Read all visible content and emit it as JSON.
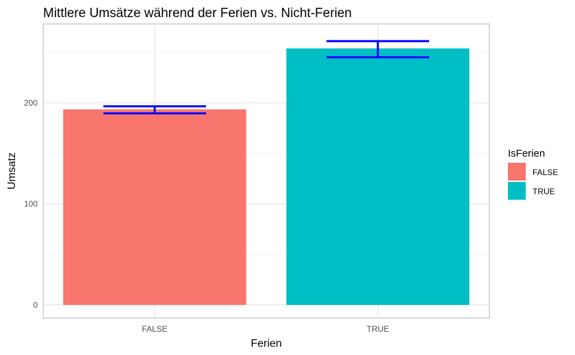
{
  "chart_data": {
    "type": "bar",
    "title": "Mittlere Umsätze während der Ferien vs. Nicht-Ferien",
    "xlabel": "Ferien",
    "ylabel": "Umsatz",
    "categories": [
      "FALSE",
      "TRUE"
    ],
    "values": [
      193.5,
      253.8
    ],
    "error_bars": [
      {
        "lower": 189.5,
        "upper": 196.5
      },
      {
        "lower": 245.0,
        "upper": 261.0
      }
    ],
    "ylim": [
      -13,
      278
    ],
    "yticks": [
      0,
      100,
      200
    ],
    "grid": true,
    "bar_colors": [
      "#F8766D",
      "#00BFC4"
    ],
    "errorbar_color": "#0000FF",
    "legend": {
      "title": "IsFerien",
      "placement": "right",
      "entries": [
        {
          "label": "FALSE",
          "color": "#F8766D"
        },
        {
          "label": "TRUE",
          "color": "#00BFC4"
        }
      ]
    }
  }
}
